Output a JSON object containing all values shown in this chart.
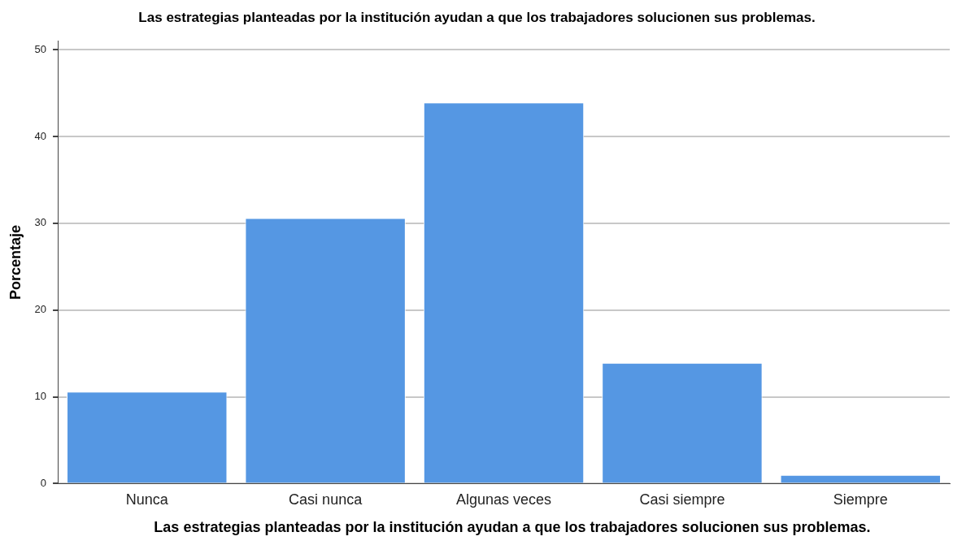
{
  "chart_data": {
    "type": "bar",
    "title": "Las estrategias planteadas por la institución ayudan a que los trabajadores solucionen sus problemas.",
    "xlabel": "Las estrategias planteadas por la institución ayudan a que los trabajadores solucionen sus problemas.",
    "ylabel": "Porcentaje",
    "categories": [
      "Nunca",
      "Casi nunca",
      "Algunas veces",
      "Casi siempre",
      "Siempre"
    ],
    "values": [
      10.6,
      30.6,
      43.9,
      13.9,
      1.0
    ],
    "color": "#5597e3",
    "ylim": [
      0,
      51
    ],
    "yticks": [
      0,
      10,
      20,
      30,
      40,
      50
    ],
    "grid": "y",
    "legend": false
  }
}
